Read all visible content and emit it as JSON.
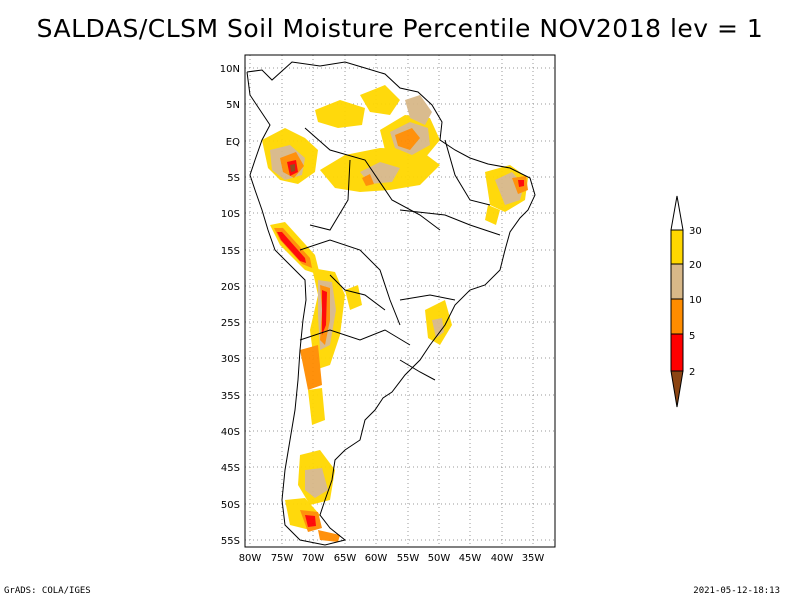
{
  "title": "SALDAS/CLSM Soil Moisture Percentile NOV2018 lev = 1",
  "footer": {
    "left": "GrADS: COLA/IGES",
    "right": "2021-05-12-18:13"
  },
  "map": {
    "lat_labels": [
      "10N",
      "5N",
      "EQ",
      "5S",
      "10S",
      "15S",
      "20S",
      "25S",
      "30S",
      "35S",
      "40S",
      "45S",
      "50S",
      "55S"
    ],
    "lon_labels": [
      "80W",
      "75W",
      "70W",
      "65W",
      "60W",
      "55W",
      "50W",
      "45W",
      "40W",
      "35W"
    ],
    "lat_range": [
      10,
      -55
    ],
    "lon_range": [
      -80,
      -33
    ],
    "grid": true
  },
  "legend": {
    "labels": [
      "30",
      "20",
      "10",
      "5",
      "2"
    ],
    "colors": {
      "above_30": "#ffffff",
      "20_30": "#ffd700",
      "10_20": "#d8b888",
      "5_10": "#ff8c00",
      "2_5": "#ff0000",
      "below_2": "#8b4513"
    }
  }
}
